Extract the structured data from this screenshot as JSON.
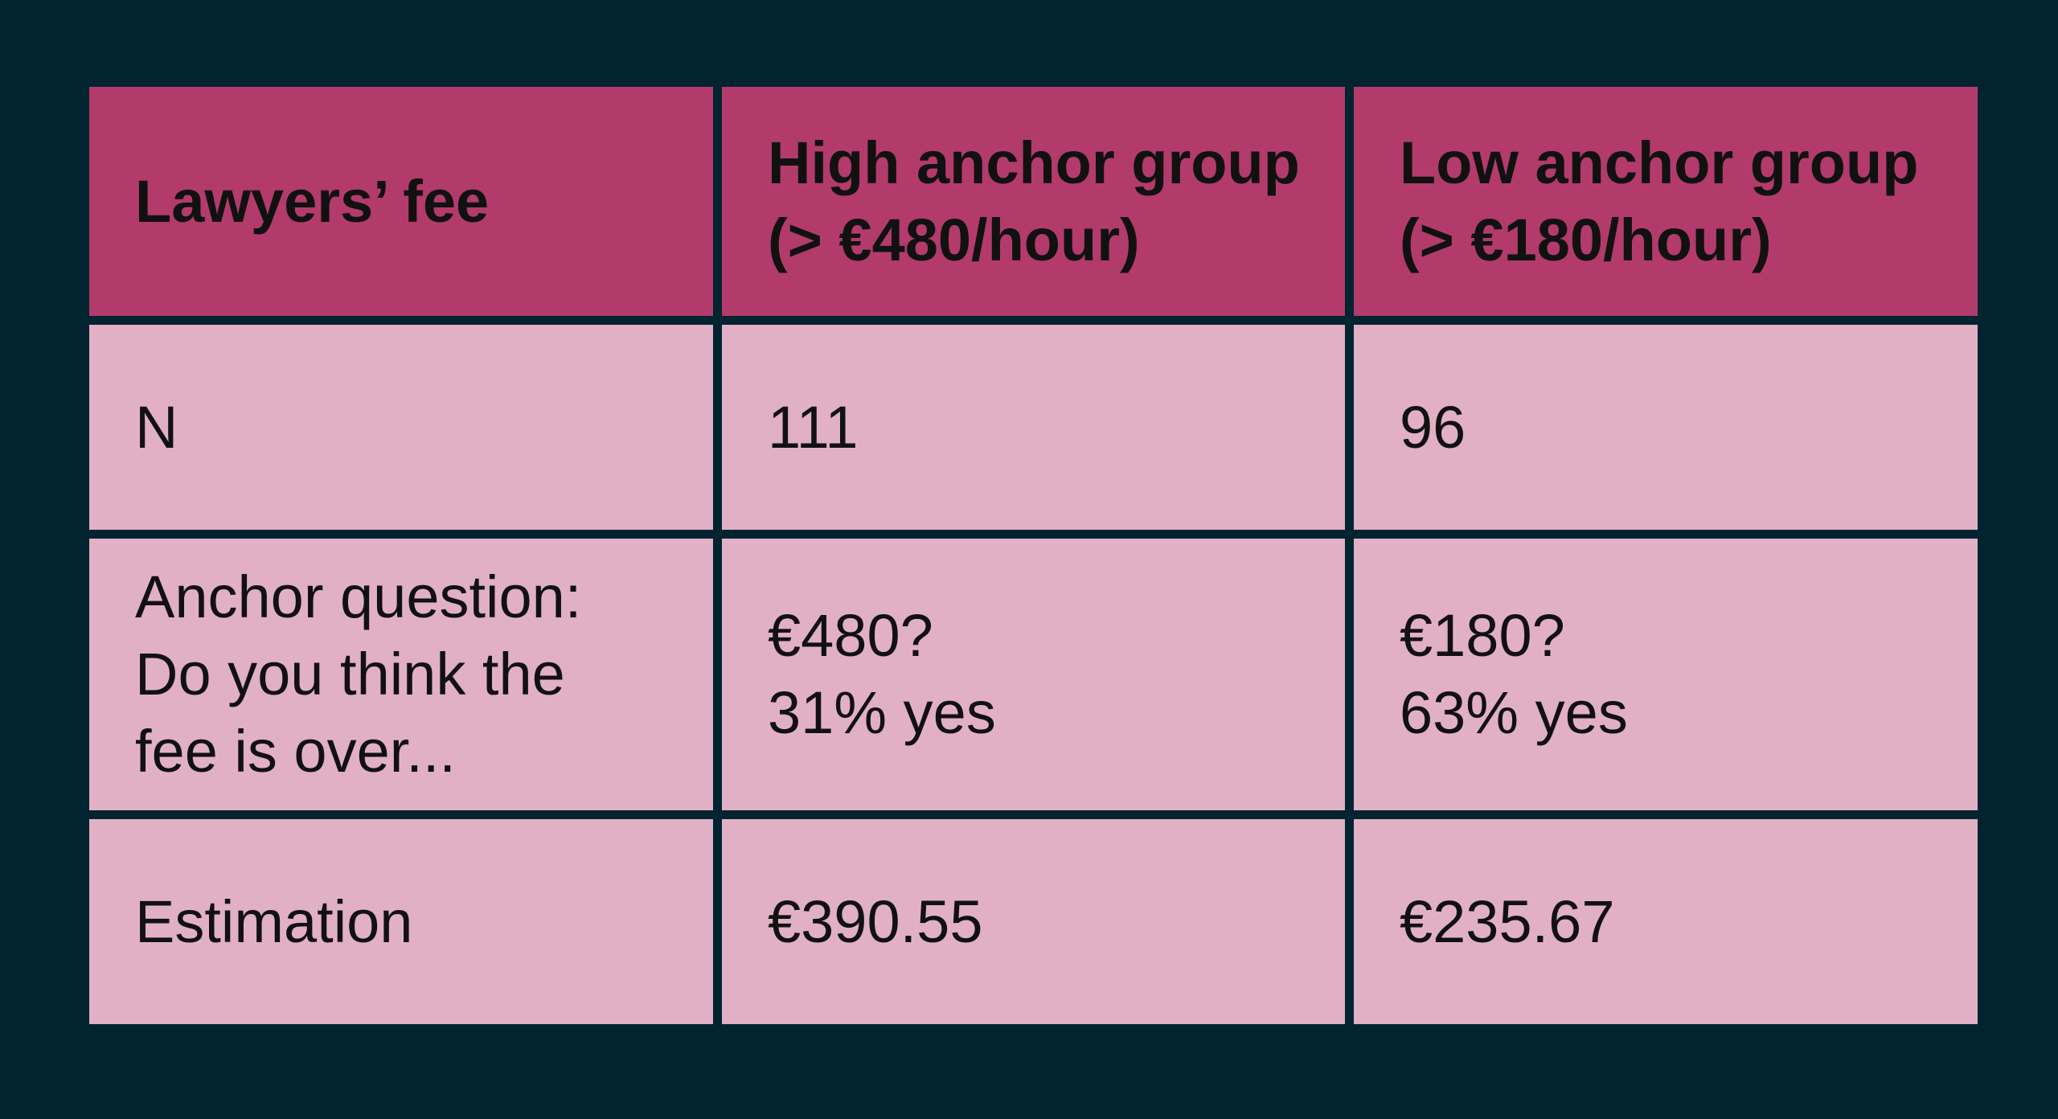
{
  "table": {
    "header": [
      [
        "Lawyers’ fee"
      ],
      [
        "High anchor group",
        "(> €480/hour)"
      ],
      [
        "Low anchor group",
        "(> €180/hour)"
      ]
    ],
    "rows": [
      [
        [
          "N"
        ],
        [
          "111"
        ],
        [
          "96"
        ]
      ],
      [
        [
          "Anchor question:",
          "Do you think the",
          "fee is over..."
        ],
        [
          "€480?",
          "31% yes"
        ],
        [
          "€180?",
          "63% yes"
        ]
      ],
      [
        [
          "Estimation"
        ],
        [
          "€390.55"
        ],
        [
          "€235.67"
        ]
      ]
    ]
  }
}
